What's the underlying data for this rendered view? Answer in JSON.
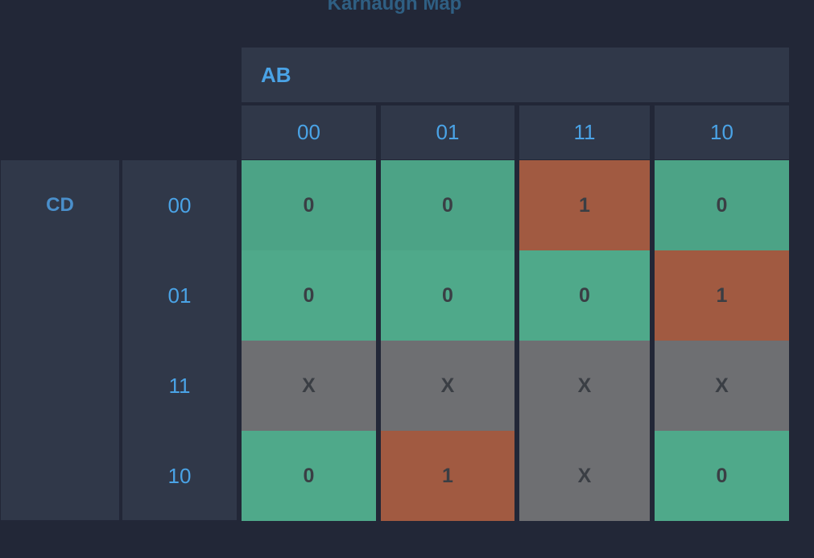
{
  "title": "Karnaugh Map",
  "colors": {
    "zero": "#4fa98a",
    "one": "#a15a41",
    "dont_care": "#6e6f72",
    "label": "#4aa3e6"
  },
  "kmap": {
    "ab_label": "AB",
    "cd_label": "CD",
    "columns": [
      "00",
      "01",
      "11",
      "10"
    ],
    "rows": [
      "00",
      "01",
      "11",
      "10"
    ],
    "cells": [
      [
        "0",
        "0",
        "1",
        "0"
      ],
      [
        "0",
        "0",
        "0",
        "1"
      ],
      [
        "X",
        "X",
        "X",
        "X"
      ],
      [
        "0",
        "1",
        "X",
        "0"
      ]
    ]
  }
}
